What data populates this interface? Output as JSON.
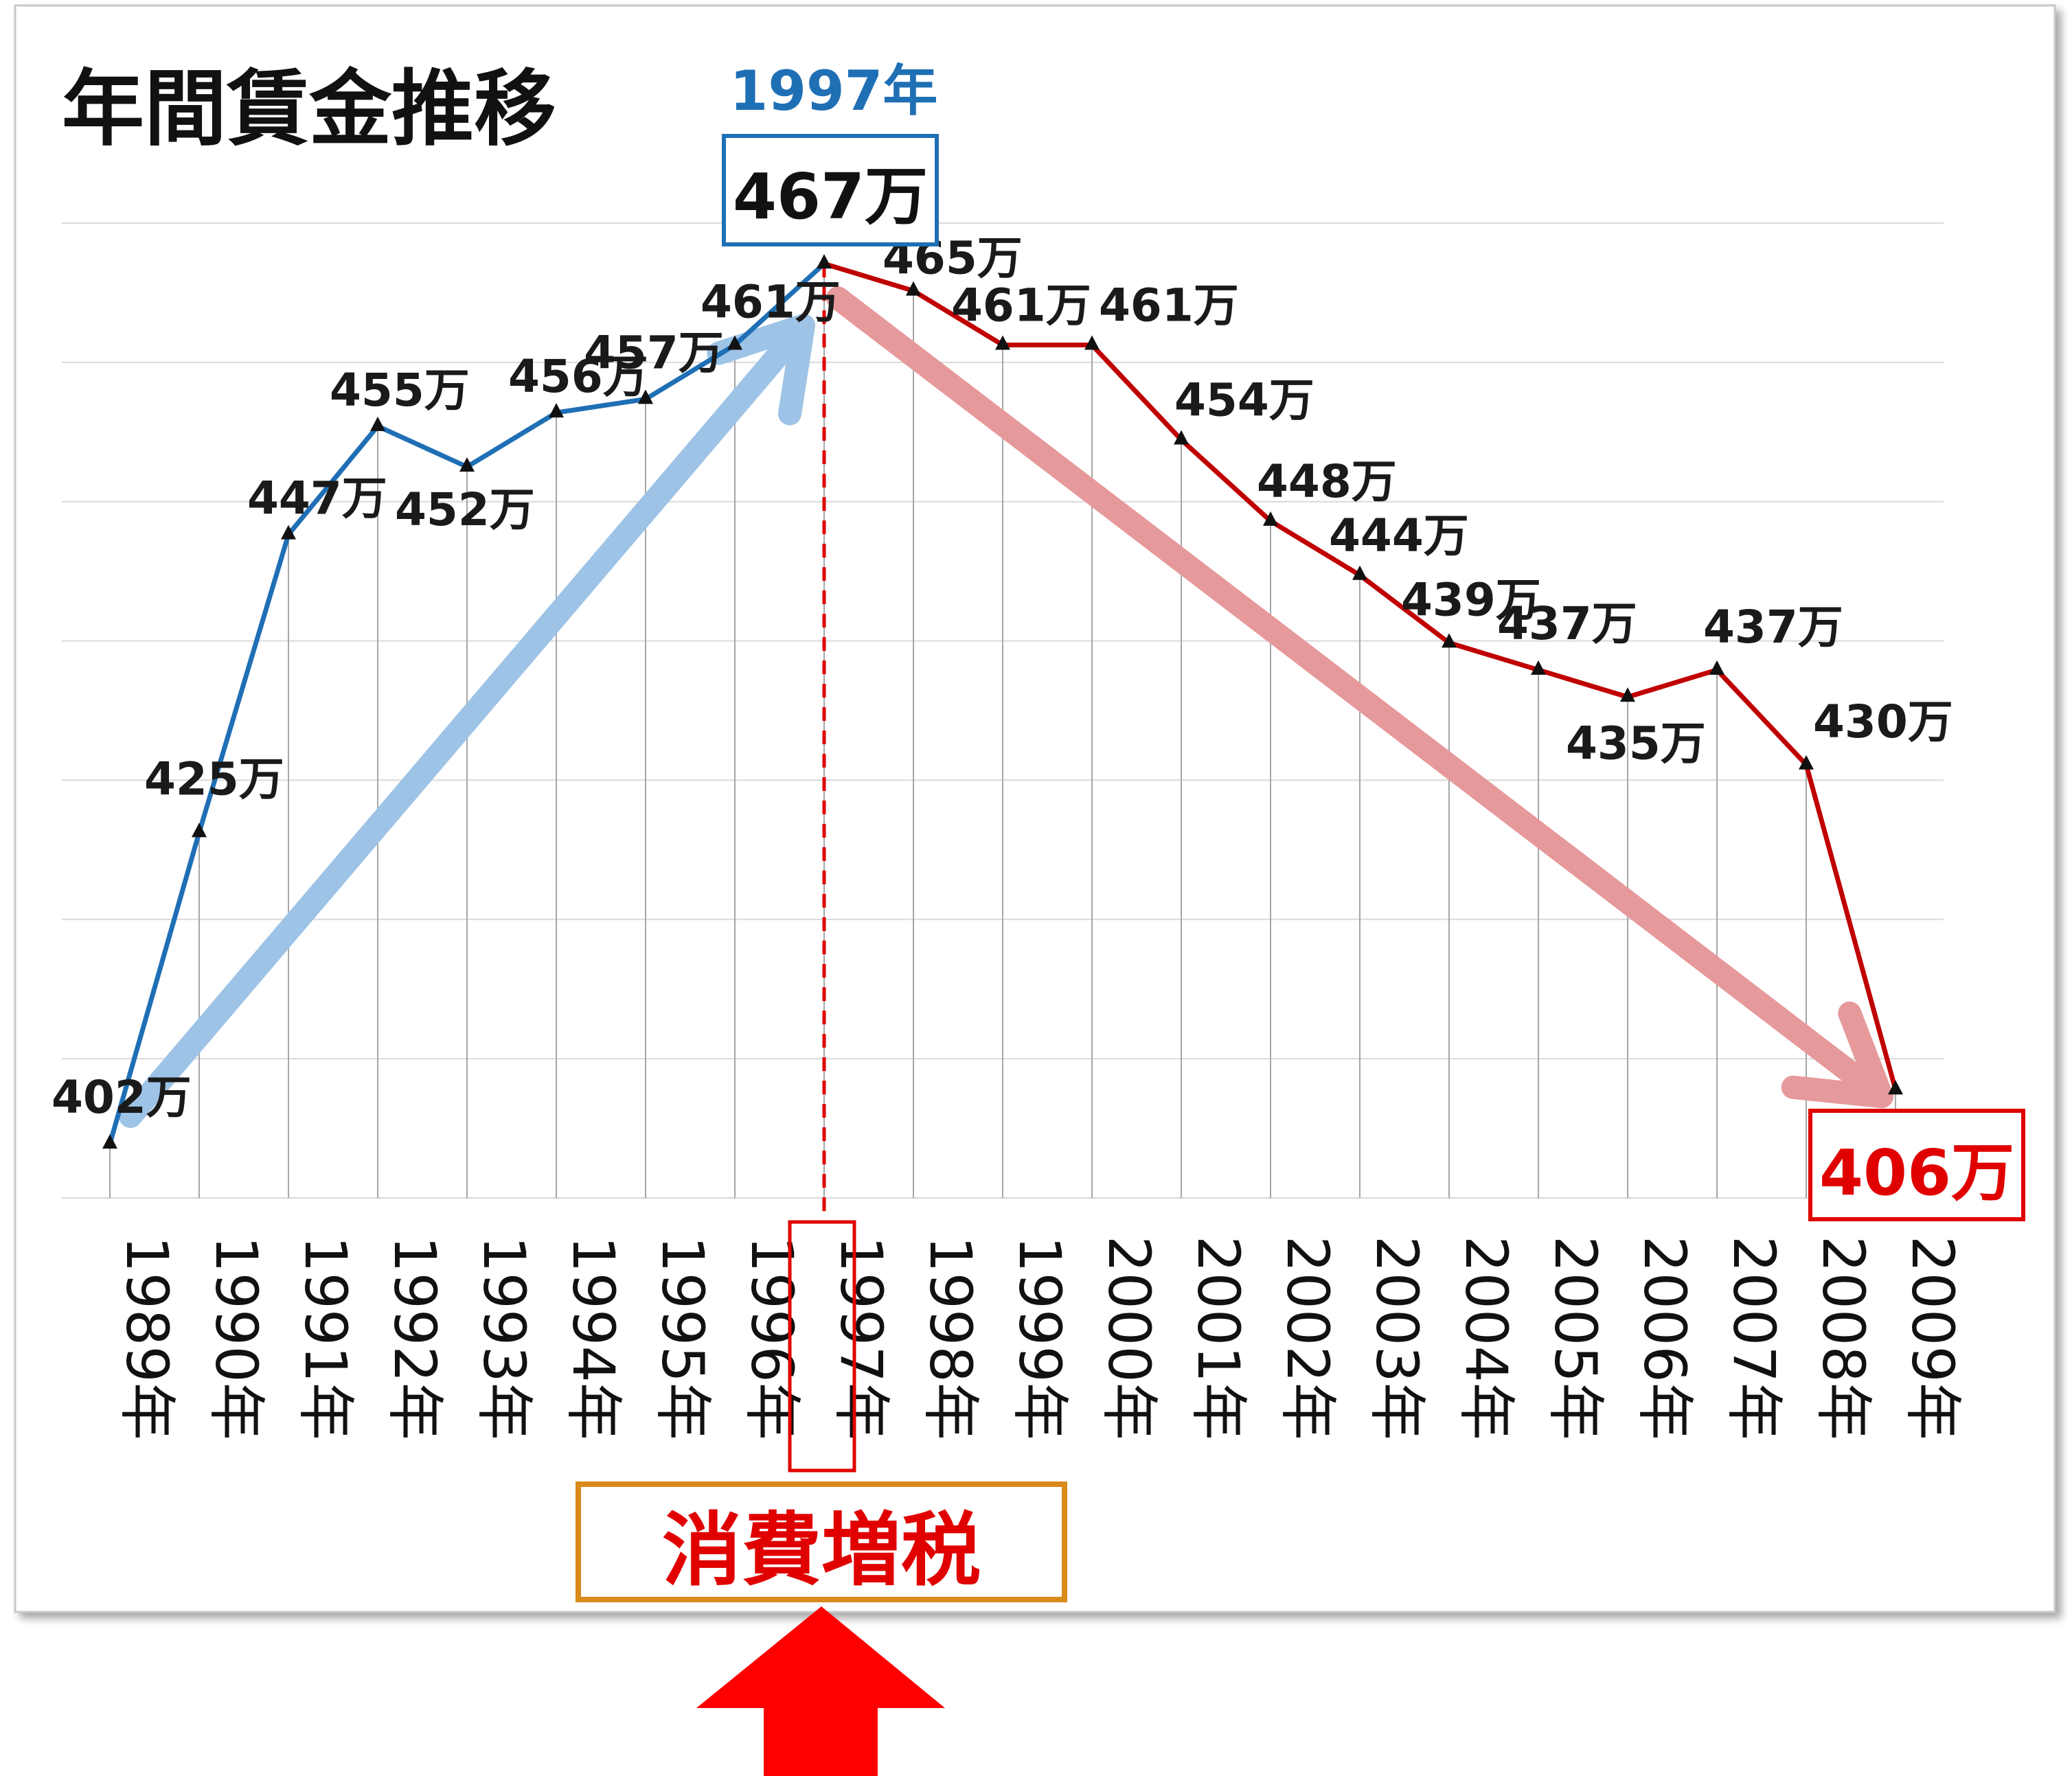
{
  "chart_data": {
    "type": "line",
    "title": "年間賃金推移",
    "categories": [
      "1989年",
      "1990年",
      "1991年",
      "1992年",
      "1993年",
      "1994年",
      "1995年",
      "1996年",
      "1997年",
      "1998年",
      "1999年",
      "2000年",
      "2001年",
      "2002年",
      "2003年",
      "2004年",
      "2005年",
      "2006年",
      "2007年",
      "2008年",
      "2009年"
    ],
    "values": [
      402,
      425,
      447,
      455,
      452,
      456,
      457,
      461,
      467,
      465,
      461,
      461,
      454,
      448,
      444,
      439,
      437,
      435,
      437,
      430,
      406
    ],
    "data_labels": [
      "402万",
      "425万",
      "447万",
      "455万",
      "452万",
      "456万",
      "457万",
      "461万",
      "467万",
      "465万",
      "461万",
      "461万",
      "454万",
      "448万",
      "444万",
      "439万",
      "437万",
      "435万",
      "437万",
      "430万",
      "406万"
    ],
    "ylim": [
      398,
      470
    ],
    "grid": "horizontal and vertical",
    "legend": "none",
    "colors": {
      "rising": "#1f6fb5",
      "falling": "#c00000",
      "rising_arrow": "#9dc3e6",
      "falling_arrow": "#e6999b"
    },
    "annotations": {
      "peak_year": "1997年",
      "peak_value": "467万",
      "end_value": "406万",
      "event": "消費増税"
    }
  }
}
